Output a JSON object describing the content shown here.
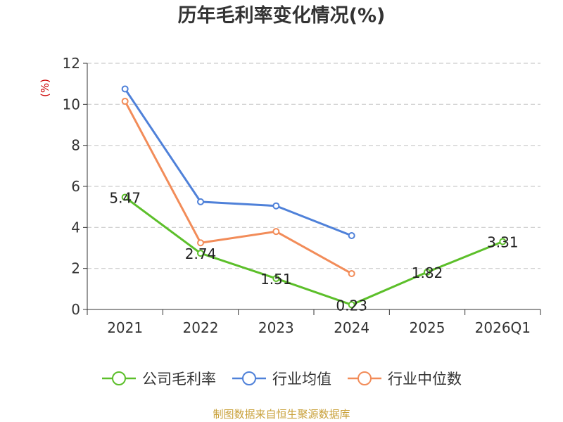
{
  "chart_data": {
    "type": "line",
    "title": "历年毛利率变化情况(%)",
    "ylabel": "(%)",
    "xlabel": "",
    "ylim": [
      0,
      12
    ],
    "yticks": [
      0,
      2,
      4,
      6,
      8,
      10,
      12
    ],
    "categories": [
      "2021",
      "2022",
      "2023",
      "2024",
      "2025",
      "2026Q1"
    ],
    "grid": true,
    "legend_position": "bottom",
    "series": [
      {
        "name": "公司毛利率",
        "color": "#5cbf2a",
        "values": [
          5.47,
          2.74,
          1.51,
          0.23,
          1.82,
          3.31
        ],
        "show_labels": true
      },
      {
        "name": "行业均值",
        "color": "#4f81d9",
        "values": [
          10.75,
          5.25,
          5.05,
          3.6,
          null,
          null
        ],
        "show_labels": false
      },
      {
        "name": "行业中位数",
        "color": "#f28c59",
        "values": [
          10.15,
          3.25,
          3.8,
          1.75,
          null,
          null
        ],
        "show_labels": false
      }
    ]
  },
  "footer": {
    "source": "制图数据来自恒生聚源数据库"
  }
}
